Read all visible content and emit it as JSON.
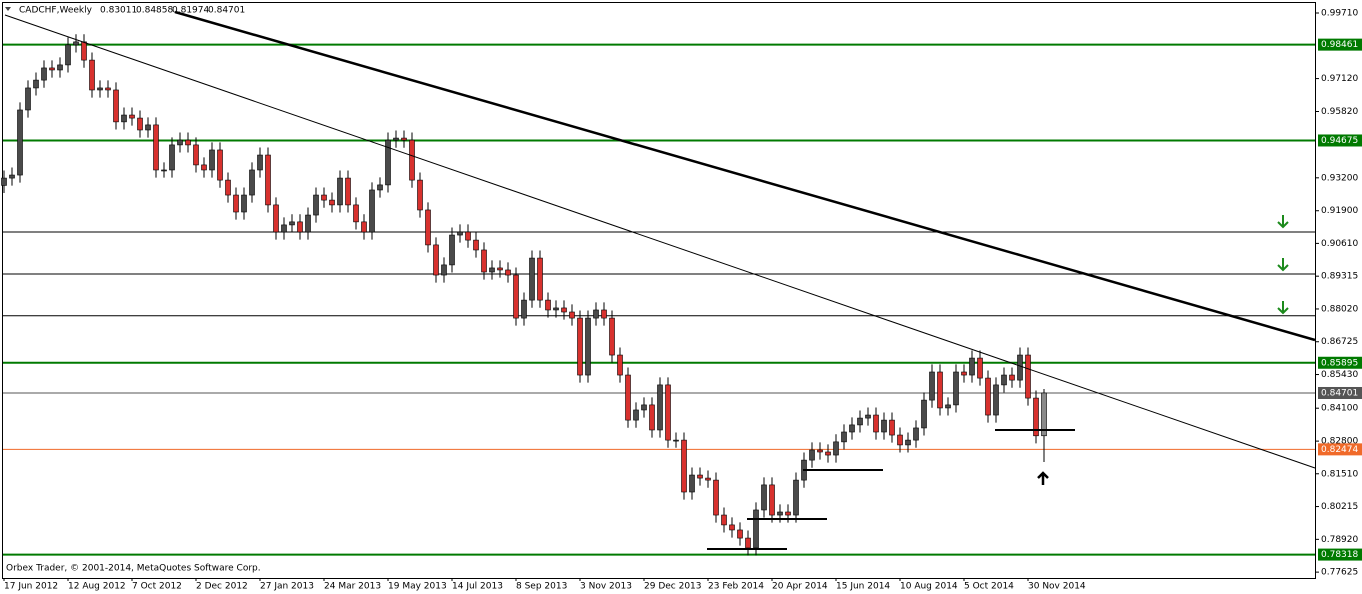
{
  "chart_data": {
    "type": "candlestick",
    "symbol": "CADCHF,Weekly",
    "footer": "Orbex Trader, © 2001-2014, MetaQuotes Software Corp.",
    "up_color": "#4a4a4a",
    "down_color": "#d8312e",
    "last_color": "#8a8a8a",
    "categories": [
      "17 Jun 2012",
      null,
      null,
      null,
      null,
      null,
      null,
      null,
      "12 Aug 2012",
      null,
      null,
      null,
      null,
      null,
      null,
      null,
      "7 Oct 2012",
      null,
      null,
      null,
      null,
      null,
      null,
      null,
      "2 Dec 2012",
      null,
      null,
      null,
      null,
      null,
      null,
      null,
      "27 Jan 2013",
      null,
      null,
      null,
      null,
      null,
      null,
      null,
      "24 Mar 2013",
      null,
      null,
      null,
      null,
      null,
      null,
      null,
      "19 May 2013",
      null,
      null,
      null,
      null,
      null,
      null,
      null,
      "14 Jul 2013",
      null,
      null,
      null,
      null,
      null,
      null,
      null,
      "8 Sep 2013",
      null,
      null,
      null,
      null,
      null,
      null,
      null,
      "3 Nov 2013",
      null,
      null,
      null,
      null,
      null,
      null,
      null,
      "29 Dec 2013",
      null,
      null,
      null,
      null,
      null,
      null,
      null,
      "23 Feb 2014",
      null,
      null,
      null,
      null,
      null,
      null,
      null,
      "20 Apr 2014",
      null,
      null,
      null,
      null,
      null,
      null,
      null,
      "15 Jun 2014",
      null,
      null,
      null,
      null,
      null,
      null,
      null,
      "10 Aug 2014",
      null,
      null,
      null,
      null,
      null,
      null,
      null,
      "5 Oct 2014",
      null,
      null,
      null,
      null,
      null,
      null,
      null,
      "30 Nov 2014",
      null,
      null
    ],
    "open": [
      0.929,
      0.9319,
      0.9331,
      0.9588,
      0.9675,
      0.9706,
      0.9754,
      0.9746,
      0.9766,
      0.9845,
      0.9857,
      0.9785,
      0.9667,
      0.9675,
      0.9667,
      0.9541,
      0.9568,
      0.9556,
      0.9509,
      0.9529,
      0.9351,
      0.9351,
      0.945,
      0.9469,
      0.945,
      0.9371,
      0.9351,
      0.943,
      0.9311,
      0.9252,
      0.9185,
      0.9252,
      0.9351,
      0.941,
      0.9213,
      0.9106,
      0.9134,
      0.9146,
      0.9106,
      0.9173,
      0.9252,
      0.9232,
      0.9213,
      0.9319,
      0.9213,
      0.9146,
      0.9106,
      0.9272,
      0.9292,
      0.9469,
      0.9477,
      0.9469,
      0.9311,
      0.9193,
      0.9055,
      0.8936,
      0.8976,
      0.9094,
      0.9106,
      0.9074,
      0.9035,
      0.8948,
      0.8964,
      0.8956,
      0.8936,
      0.8766,
      0.8837,
      0.9003,
      0.8837,
      0.8798,
      0.8806,
      0.879,
      0.8766,
      0.8541,
      0.8766,
      0.8798,
      0.8766,
      0.862,
      0.8541,
      0.8363,
      0.8403,
      0.8423,
      0.8324,
      0.8502,
      0.8284,
      0.8284,
      0.8079,
      0.8146,
      0.8134,
      0.8126,
      0.7988,
      0.7949,
      0.7929,
      0.7897,
      0.7858,
      0.8008,
      0.8107,
      0.7988,
      0.8,
      0.7988,
      0.8126,
      0.8205,
      0.8245,
      0.8237,
      0.8225,
      0.8277,
      0.8316,
      0.8344,
      0.8371,
      0.8383,
      0.8316,
      0.8363,
      0.8304,
      0.8265,
      0.8284,
      0.8332,
      0.8442,
      0.8553,
      0.8411,
      0.8423,
      0.8553,
      0.8541,
      0.8608,
      0.8529,
      0.8383,
      0.8502,
      0.8541,
      0.8521,
      0.862,
      0.845,
      0.83011
    ],
    "high": [
      0.9349,
      0.9361,
      0.9618,
      0.9705,
      0.9736,
      0.9784,
      0.9784,
      0.9796,
      0.9875,
      0.9887,
      0.9887,
      0.9815,
      0.9705,
      0.9705,
      0.9697,
      0.9598,
      0.9598,
      0.9586,
      0.9559,
      0.9559,
      0.9381,
      0.948,
      0.9499,
      0.9499,
      0.948,
      0.9401,
      0.946,
      0.946,
      0.9341,
      0.9282,
      0.9282,
      0.9381,
      0.944,
      0.944,
      0.9243,
      0.9164,
      0.9176,
      0.9176,
      0.9203,
      0.9282,
      0.9282,
      0.9262,
      0.9349,
      0.9349,
      0.9243,
      0.9176,
      0.9302,
      0.9322,
      0.9499,
      0.9507,
      0.9507,
      0.9499,
      0.9341,
      0.9223,
      0.9085,
      0.9006,
      0.9124,
      0.9136,
      0.9136,
      0.9104,
      0.9065,
      0.8994,
      0.8994,
      0.8986,
      0.8966,
      0.8867,
      0.9033,
      0.9033,
      0.8867,
      0.8836,
      0.8836,
      0.882,
      0.8796,
      0.8796,
      0.8828,
      0.8828,
      0.8796,
      0.865,
      0.8571,
      0.8433,
      0.8453,
      0.8453,
      0.8532,
      0.8532,
      0.8314,
      0.8314,
      0.8176,
      0.8176,
      0.8164,
      0.8156,
      0.8018,
      0.7979,
      0.7959,
      0.7927,
      0.8038,
      0.8137,
      0.8137,
      0.803,
      0.803,
      0.8156,
      0.8235,
      0.8275,
      0.8275,
      0.8267,
      0.8307,
      0.8346,
      0.8374,
      0.8401,
      0.8413,
      0.8413,
      0.8393,
      0.8393,
      0.8334,
      0.8314,
      0.8362,
      0.8472,
      0.8583,
      0.8583,
      0.8453,
      0.8583,
      0.8583,
      0.8638,
      0.8638,
      0.8559,
      0.8532,
      0.8571,
      0.8571,
      0.865,
      0.865,
      0.848,
      0.84858
    ],
    "low": [
      0.926,
      0.9289,
      0.9301,
      0.9558,
      0.9645,
      0.9676,
      0.9716,
      0.9716,
      0.9736,
      0.9815,
      0.9755,
      0.9637,
      0.9637,
      0.9637,
      0.9511,
      0.9511,
      0.9526,
      0.9479,
      0.9479,
      0.9321,
      0.9321,
      0.9321,
      0.942,
      0.942,
      0.9341,
      0.9321,
      0.9321,
      0.9281,
      0.9222,
      0.9155,
      0.9155,
      0.9222,
      0.9321,
      0.9183,
      0.9076,
      0.9076,
      0.9104,
      0.9076,
      0.9076,
      0.9143,
      0.9202,
      0.9183,
      0.9183,
      0.9183,
      0.9116,
      0.9076,
      0.9076,
      0.9242,
      0.9262,
      0.9439,
      0.9439,
      0.9281,
      0.9163,
      0.9025,
      0.8906,
      0.8906,
      0.8946,
      0.9064,
      0.9044,
      0.9005,
      0.8918,
      0.8918,
      0.8926,
      0.8906,
      0.8736,
      0.8736,
      0.8807,
      0.8807,
      0.8768,
      0.8768,
      0.876,
      0.8736,
      0.8511,
      0.8511,
      0.8736,
      0.8736,
      0.859,
      0.8511,
      0.8333,
      0.8333,
      0.8373,
      0.8294,
      0.8294,
      0.8254,
      0.8254,
      0.8049,
      0.8049,
      0.8104,
      0.8096,
      0.7958,
      0.7919,
      0.7899,
      0.7867,
      0.7828,
      0.7828,
      0.7978,
      0.7958,
      0.7958,
      0.7958,
      0.7958,
      0.8096,
      0.8175,
      0.8207,
      0.8195,
      0.8195,
      0.8247,
      0.8286,
      0.8314,
      0.8341,
      0.8286,
      0.8286,
      0.8274,
      0.8235,
      0.8235,
      0.8254,
      0.8302,
      0.8412,
      0.8381,
      0.8381,
      0.8393,
      0.8511,
      0.8511,
      0.8499,
      0.8353,
      0.8353,
      0.8472,
      0.8491,
      0.8491,
      0.842,
      0.8271,
      0.81974
    ],
    "close": [
      0.9319,
      0.9331,
      0.9588,
      0.9675,
      0.9706,
      0.9754,
      0.9746,
      0.9766,
      0.9845,
      0.9857,
      0.9785,
      0.9667,
      0.9675,
      0.9667,
      0.9541,
      0.9568,
      0.9556,
      0.9509,
      0.9529,
      0.9351,
      0.9351,
      0.945,
      0.9469,
      0.945,
      0.9371,
      0.9351,
      0.943,
      0.9311,
      0.9252,
      0.9185,
      0.9252,
      0.9351,
      0.941,
      0.9213,
      0.9106,
      0.9134,
      0.9146,
      0.9106,
      0.9173,
      0.9252,
      0.9232,
      0.9213,
      0.9319,
      0.9213,
      0.9146,
      0.9106,
      0.9272,
      0.9292,
      0.9469,
      0.9477,
      0.9469,
      0.9311,
      0.9193,
      0.9055,
      0.8936,
      0.8976,
      0.9094,
      0.9106,
      0.9074,
      0.9035,
      0.8948,
      0.8964,
      0.8956,
      0.8936,
      0.8766,
      0.8837,
      0.9003,
      0.8837,
      0.8798,
      0.8806,
      0.879,
      0.8766,
      0.8541,
      0.8766,
      0.8798,
      0.8766,
      0.862,
      0.8541,
      0.8363,
      0.8403,
      0.8423,
      0.8324,
      0.8502,
      0.8284,
      0.8284,
      0.8079,
      0.8146,
      0.8134,
      0.8126,
      0.7988,
      0.7949,
      0.7929,
      0.7897,
      0.7858,
      0.8008,
      0.8107,
      0.7988,
      0.8,
      0.7988,
      0.8126,
      0.8205,
      0.8245,
      0.8237,
      0.8225,
      0.8277,
      0.8316,
      0.8344,
      0.8371,
      0.8383,
      0.8316,
      0.8363,
      0.8304,
      0.8265,
      0.8284,
      0.8332,
      0.8442,
      0.8553,
      0.8411,
      0.8423,
      0.8553,
      0.8541,
      0.8608,
      0.8529,
      0.8383,
      0.8502,
      0.8541,
      0.8521,
      0.862,
      0.845,
      0.8301,
      0.84701
    ],
    "ylim": [
      0.77393,
      1.00224
    ],
    "yticks": [
      {
        "value": 0.9971,
        "label": "0.99710"
      },
      {
        "value": 0.9712,
        "label": "0.97120"
      },
      {
        "value": 0.9582,
        "label": "0.95820"
      },
      {
        "value": 0.932,
        "label": "0.93200"
      },
      {
        "value": 0.919,
        "label": "0.91900"
      },
      {
        "value": 0.9061,
        "label": "0.90610"
      },
      0.89315,
      {
        "value": 0.8802,
        "label": "0.88020"
      },
      0.86725,
      {
        "value": 0.8543,
        "label": "0.85430"
      },
      {
        "value": 0.841,
        "label": "0.84100"
      },
      {
        "value": 0.828,
        "label": "0.82800"
      },
      {
        "value": 0.8151,
        "label": "0.81510"
      },
      0.80215,
      {
        "value": 0.7892,
        "label": "0.78920"
      },
      0.77625
    ],
    "levels": [
      {
        "value": 0.98461,
        "color": "#007a00"
      },
      {
        "value": 0.94675,
        "color": "#007a00"
      },
      {
        "value": 0.85895,
        "color": "#007a00"
      },
      {
        "value": 0.84701,
        "color": "#555555"
      },
      {
        "value": 0.82474,
        "color": "#f06a2a"
      },
      {
        "value": 0.78318,
        "color": "#007a00"
      }
    ],
    "lines": [
      {
        "value": 0.9106,
        "color": "#000000"
      },
      {
        "value": 0.894,
        "color": "#000000"
      },
      {
        "value": 0.8775,
        "color": "#000000"
      }
    ]
  }
}
